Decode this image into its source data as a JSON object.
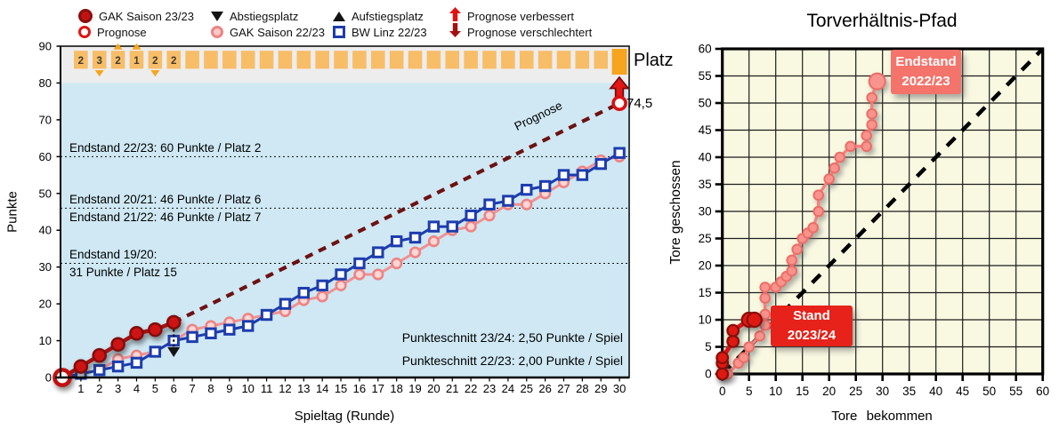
{
  "legend": {
    "items": [
      {
        "label": "GAK Saison 23/23",
        "marker": "dark-red-circle"
      },
      {
        "label": "Prognose",
        "marker": "open-red-circle"
      },
      {
        "label": "Abstiegsplatz",
        "marker": "black-triangle-down"
      },
      {
        "label": "GAK Saison 22/23",
        "marker": "pink-circle"
      },
      {
        "label": "Aufstiegsplatz",
        "marker": "black-triangle-up"
      },
      {
        "label": "BW Linz 22/23",
        "marker": "blue-square"
      },
      {
        "label": "Prognose verbessert",
        "marker": "red-arrow-up"
      },
      {
        "label": "Prognose verschlechtert",
        "marker": "dark-red-arrow-down"
      }
    ]
  },
  "chart_data": [
    {
      "id": "punkteverlauf",
      "type": "line",
      "x_label": "Spieltag (Runde)",
      "y_label": "Punkte",
      "x_range": [
        0,
        30
      ],
      "x_tick_step": 1,
      "y_range": [
        0,
        90
      ],
      "y_tick_step": 10,
      "background": "#cfe8f4",
      "top_band_color": "#ededed",
      "series": [
        {
          "name": "GAK Saison 23/23",
          "color": "#c21313",
          "marker": "filled-dark-red-circle",
          "start_round": 0,
          "values": [
            0,
            3,
            6,
            9,
            12,
            13,
            15
          ]
        },
        {
          "name": "GAK Saison 22/23",
          "color": "#ee8383",
          "marker": "pink-circle",
          "start_round": 0,
          "values": [
            0,
            1,
            2,
            5,
            6,
            7,
            10,
            13,
            14,
            15,
            16,
            17,
            18,
            21,
            22,
            25,
            28,
            28,
            31,
            34,
            37,
            40,
            41,
            44,
            47,
            47,
            50,
            53,
            56,
            59,
            60
          ]
        },
        {
          "name": "BW Linz 22/23",
          "color": "#1d3cad",
          "marker": "open-blue-square",
          "start_round": 0,
          "values": [
            0,
            1,
            2,
            3,
            4,
            7,
            10,
            11,
            12,
            13,
            14,
            17,
            20,
            23,
            25,
            28,
            31,
            34,
            37,
            38,
            41,
            41,
            44,
            47,
            48,
            51,
            52,
            55,
            55,
            58,
            61
          ]
        }
      ],
      "prognose": {
        "label": "Prognose",
        "from_round": 6,
        "from_points": 15,
        "to_round": 30,
        "to_points": 74.5,
        "end_label": "74,5",
        "color": "#6d1111"
      },
      "platz_row": {
        "label": "Platz",
        "values": [
          2,
          3,
          2,
          1,
          2,
          2
        ],
        "total_rounds": 30,
        "highlight_round": 30,
        "square_color": "#f8bd67",
        "highlight_color": "#f7a41f",
        "arrows": [
          {
            "round": 2,
            "dir": "down"
          },
          {
            "round": 3,
            "dir": "up"
          },
          {
            "round": 4,
            "dir": "up"
          },
          {
            "round": 5,
            "dir": "down"
          }
        ]
      },
      "reference_lines": [
        {
          "points": 60,
          "label_above": "Endstand 22/23: 60 Punkte / Platz 2"
        },
        {
          "points": 46,
          "label_above": "Endstand 20/21: 46 Punkte / Platz 6",
          "label_below": "Endstand 21/22: 46 Punkte / Platz 7"
        },
        {
          "points": 31,
          "label_above": "Endstand 19/20:",
          "label_below": "31 Punkte / Platz 15"
        }
      ],
      "notes": [
        "Punkteschnitt 23/24: 2,50 Punkte / Spiel",
        "Punkteschnitt 22/23: 2,00 Punkte / Spiel"
      ],
      "abstiegsplatz_marker": {
        "round": 6,
        "points": 7
      }
    },
    {
      "id": "torverhaeltnis",
      "type": "scatter-path",
      "title": "Torverhältnis-Pfad",
      "x_label": "Tore bekommen",
      "y_label": "Tore geschossen",
      "x_range": [
        0,
        60
      ],
      "y_range": [
        0,
        60
      ],
      "tick_step": 5,
      "background": "#f9f9e2",
      "diagonal": {
        "from": [
          0,
          0
        ],
        "to": [
          60,
          60
        ]
      },
      "paths": [
        {
          "name": "GAK 2022/23",
          "color": "#f4837d",
          "label": {
            "line1": "Endstand",
            "line2": "2022/23"
          },
          "points": [
            [
              0,
              0
            ],
            [
              1,
              0
            ],
            [
              3,
              2
            ],
            [
              4,
              3
            ],
            [
              5,
              5
            ],
            [
              7,
              7
            ],
            [
              8,
              9
            ],
            [
              8,
              11
            ],
            [
              8,
              14
            ],
            [
              8,
              16
            ],
            [
              10,
              16
            ],
            [
              11,
              17
            ],
            [
              12,
              18
            ],
            [
              13,
              19
            ],
            [
              13,
              21
            ],
            [
              14,
              23
            ],
            [
              15,
              25
            ],
            [
              16,
              26
            ],
            [
              17,
              27
            ],
            [
              18,
              30
            ],
            [
              18,
              33
            ],
            [
              20,
              36
            ],
            [
              21,
              38
            ],
            [
              22,
              40
            ],
            [
              24,
              42
            ],
            [
              27,
              42
            ],
            [
              27,
              44
            ],
            [
              28,
              46
            ],
            [
              28,
              48
            ],
            [
              28,
              51
            ],
            [
              29,
              54
            ]
          ]
        },
        {
          "name": "GAK 2023/24",
          "color": "#d81414",
          "label": {
            "line1": "Stand",
            "line2": "2023/24"
          },
          "points": [
            [
              0,
              0
            ],
            [
              0,
              2
            ],
            [
              0,
              3
            ],
            [
              2,
              6
            ],
            [
              2,
              8
            ],
            [
              5,
              10
            ],
            [
              6,
              10
            ]
          ]
        }
      ]
    }
  ]
}
